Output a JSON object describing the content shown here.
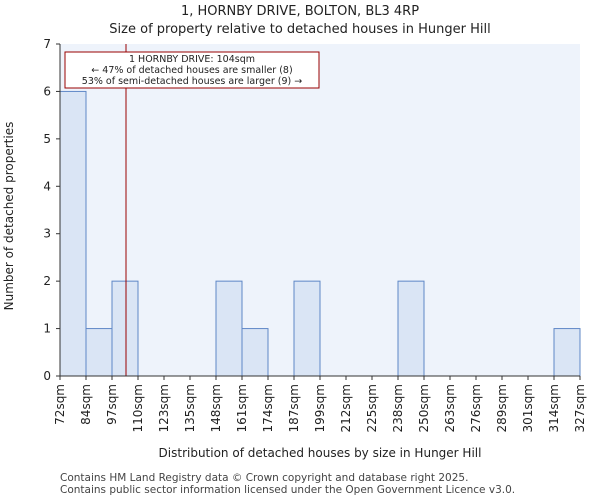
{
  "title_line1": "1, HORNBY DRIVE, BOLTON, BL3 4RP",
  "title_line2": "Size of property relative to detached houses in Hunger Hill",
  "footer_line1": "Contains HM Land Registry data © Crown copyright and database right 2025.",
  "footer_line2": "Contains public sector information licensed under the Open Government Licence v3.0.",
  "chart_data": {
    "type": "bar",
    "xlabel": "Distribution of detached houses by size in Hunger Hill",
    "ylabel": "Number of detached properties",
    "ylim": [
      0,
      7
    ],
    "y_ticks": [
      0,
      1,
      2,
      3,
      4,
      5,
      6,
      7
    ],
    "x_tick_labels": [
      "72sqm",
      "84sqm",
      "97sqm",
      "110sqm",
      "123sqm",
      "135sqm",
      "148sqm",
      "161sqm",
      "174sqm",
      "187sqm",
      "199sqm",
      "212sqm",
      "225sqm",
      "238sqm",
      "250sqm",
      "263sqm",
      "276sqm",
      "289sqm",
      "301sqm",
      "314sqm",
      "327sqm"
    ],
    "values": [
      6,
      1,
      2,
      0,
      0,
      0,
      2,
      1,
      0,
      2,
      0,
      0,
      0,
      2,
      0,
      0,
      0,
      0,
      0,
      1
    ],
    "grid": false,
    "colors": {
      "bar_fill": "#dae5f5",
      "bar_edge": "#5f87c6",
      "plot_bg": "#eef3fb",
      "marker": "#990000"
    },
    "marker": {
      "value": 104,
      "label": "1 HORNBY DRIVE: 104sqm",
      "line2": "← 47% of detached houses are smaller (8)",
      "line3": "53% of semi-detached houses are larger (9) →"
    }
  }
}
